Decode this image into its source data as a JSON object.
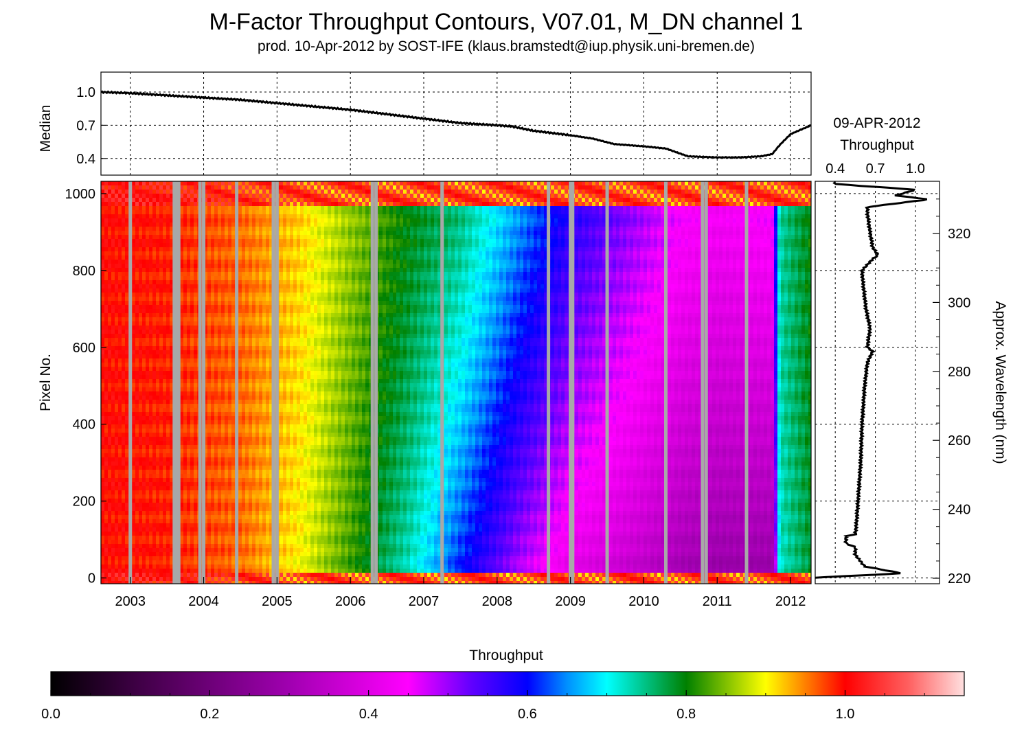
{
  "title": "M-Factor Throughput Contours, V07.01, M_DN channel 1",
  "subtitle": "prod. 10-Apr-2012 by SOST-IFE (klaus.bramstedt@iup.physik.uni-bremen.de)",
  "chart_data": [
    {
      "type": "line",
      "panel": "median-timeseries",
      "ylabel": "Median",
      "yticks": [
        "0.4",
        "0.7",
        "1.0"
      ],
      "ylim": [
        0.25,
        1.18
      ],
      "xlim": [
        2002.6,
        2012.28
      ],
      "grid": true,
      "series": [
        {
          "x": [
            2002.6,
            2003.0,
            2003.5,
            2004.0,
            2004.5,
            2005.0,
            2005.5,
            2006.0,
            2006.5,
            2007.0,
            2007.5,
            2008.0,
            2008.2,
            2008.5,
            2009.0,
            2009.3,
            2009.6,
            2010.0,
            2010.3,
            2010.6,
            2011.0,
            2011.3,
            2011.6,
            2011.75,
            2011.85,
            2012.0,
            2012.28
          ],
          "values": [
            1.0,
            0.99,
            0.97,
            0.95,
            0.93,
            0.9,
            0.87,
            0.84,
            0.8,
            0.76,
            0.72,
            0.7,
            0.69,
            0.65,
            0.61,
            0.58,
            0.53,
            0.51,
            0.49,
            0.42,
            0.41,
            0.41,
            0.42,
            0.44,
            0.52,
            0.62,
            0.7
          ]
        }
      ]
    },
    {
      "type": "heatmap",
      "panel": "throughput-contours",
      "ylabel": "Pixel No.",
      "xticks": [
        "2003",
        "2004",
        "2005",
        "2006",
        "2007",
        "2008",
        "2009",
        "2010",
        "2011",
        "2012"
      ],
      "yticks": [
        "0",
        "200",
        "400",
        "600",
        "800",
        "1000"
      ],
      "xlim": [
        2002.6,
        2012.28
      ],
      "ylim": [
        -15,
        1032
      ],
      "colorbar": {
        "label": "Throughput",
        "ticks": [
          "0.0",
          "0.2",
          "0.4",
          "0.6",
          "0.8",
          "1.0"
        ],
        "range": [
          0.0,
          1.15
        ],
        "stops": [
          {
            "value": 0.0,
            "color": "#000000"
          },
          {
            "value": 0.1,
            "color": "#3a0040"
          },
          {
            "value": 0.3,
            "color": "#a000b0"
          },
          {
            "value": 0.45,
            "color": "#ff00ff"
          },
          {
            "value": 0.53,
            "color": "#6000ff"
          },
          {
            "value": 0.6,
            "color": "#0000ff"
          },
          {
            "value": 0.65,
            "color": "#0090ff"
          },
          {
            "value": 0.7,
            "color": "#00ffff"
          },
          {
            "value": 0.75,
            "color": "#00c080"
          },
          {
            "value": 0.8,
            "color": "#008000"
          },
          {
            "value": 0.85,
            "color": "#80c000"
          },
          {
            "value": 0.9,
            "color": "#ffff00"
          },
          {
            "value": 0.95,
            "color": "#ff8000"
          },
          {
            "value": 1.0,
            "color": "#ff0000"
          },
          {
            "value": 1.08,
            "color": "#ff6060"
          },
          {
            "value": 1.15,
            "color": "#ffe0e0"
          }
        ]
      },
      "data_gaps": [
        2003.0,
        2003.6,
        2003.63,
        2003.66,
        2003.95,
        2004.0,
        2004.45,
        2004.95,
        2005.0,
        2006.3,
        2006.35,
        2007.25,
        2008.7,
        2009.0,
        2009.03,
        2009.5,
        2010.3,
        2010.8,
        2010.85,
        2011.4
      ],
      "trend": {
        "years": [
          2002.6,
          2003.5,
          2004.5,
          2005.3,
          2006.0,
          2006.8,
          2007.5,
          2008.3,
          2009.0,
          2010.0,
          2010.5,
          2011.0,
          2011.75,
          2011.85,
          2012.28
        ],
        "short_wavelength_end": [
          1.0,
          0.99,
          0.96,
          0.9,
          0.82,
          0.72,
          0.6,
          0.48,
          0.4,
          0.34,
          0.3,
          0.28,
          0.28,
          0.72,
          0.78
        ],
        "long_wavelength_end": [
          1.0,
          0.99,
          0.96,
          0.92,
          0.86,
          0.8,
          0.76,
          0.66,
          0.58,
          0.5,
          0.46,
          0.44,
          0.46,
          0.74,
          0.8
        ]
      }
    },
    {
      "type": "line",
      "panel": "latest-throughput-profile",
      "title": "09-APR-2012",
      "xlabel": "Throughput",
      "xticks": [
        "0.4",
        "0.7",
        "1.0"
      ],
      "xlim": [
        0.25,
        1.18
      ],
      "right_axis_label": "Approx. Wavelength (nm)",
      "right_axis_ticks": [
        "220",
        "240",
        "260",
        "280",
        "300",
        "320"
      ],
      "ylim": [
        -15,
        1032
      ],
      "grid": true,
      "series": [
        {
          "pixel": [
            0,
            12,
            30,
            60,
            80,
            90,
            110,
            112,
            150,
            200,
            300,
            400,
            500,
            560,
            590,
            600,
            650,
            700,
            760,
            800,
            830,
            840,
            860,
            900,
            950,
            965,
            985,
            995,
            1010,
            1025
          ],
          "throughput": [
            0.2,
            0.9,
            0.62,
            0.55,
            0.55,
            0.48,
            0.48,
            0.55,
            0.56,
            0.57,
            0.59,
            0.6,
            0.62,
            0.64,
            0.68,
            0.64,
            0.66,
            0.63,
            0.61,
            0.6,
            0.68,
            0.72,
            0.68,
            0.66,
            0.64,
            0.64,
            1.1,
            0.85,
            1.0,
            0.4
          ]
        }
      ]
    }
  ]
}
